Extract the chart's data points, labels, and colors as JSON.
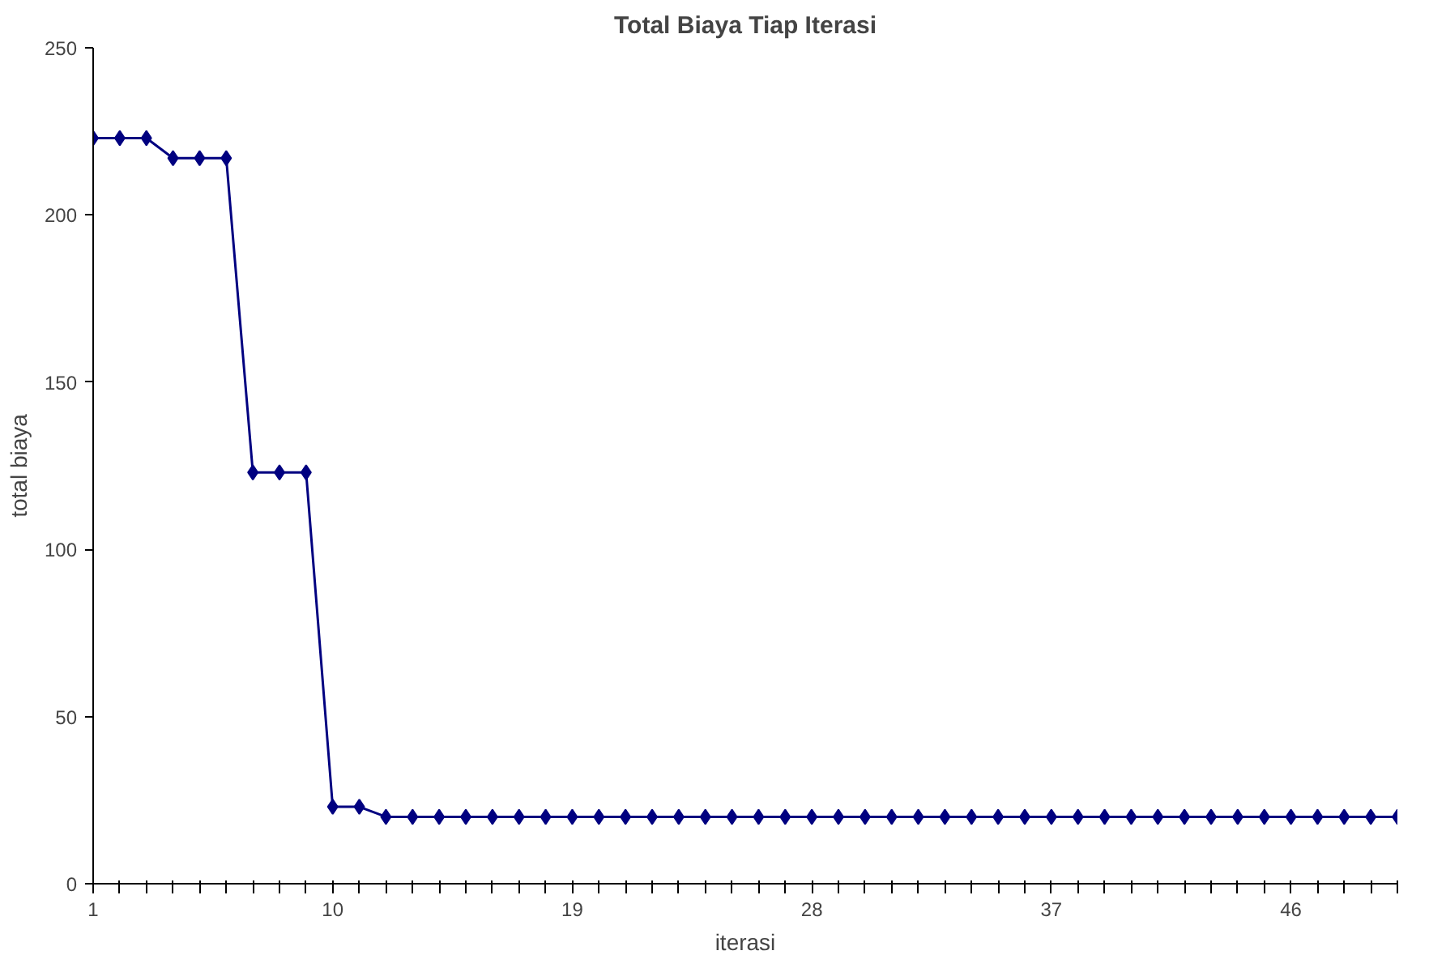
{
  "chart_data": {
    "type": "line",
    "title": "Total Biaya Tiap Iterasi",
    "xlabel": "iterasi",
    "ylabel": "total biaya",
    "x": [
      1,
      2,
      3,
      4,
      5,
      6,
      7,
      8,
      9,
      10,
      11,
      12,
      13,
      14,
      15,
      16,
      17,
      18,
      19,
      20,
      21,
      22,
      23,
      24,
      25,
      26,
      27,
      28,
      29,
      30,
      31,
      32,
      33,
      34,
      35,
      36,
      37,
      38,
      39,
      40,
      41,
      42,
      43,
      44,
      45,
      46,
      47,
      48,
      49,
      50
    ],
    "series": [
      {
        "color": "#000080",
        "values": [
          223,
          223,
          223,
          217,
          217,
          217,
          123,
          123,
          123,
          23,
          23,
          20,
          20,
          20,
          20,
          20,
          20,
          20,
          20,
          20,
          20,
          20,
          20,
          20,
          20,
          20,
          20,
          20,
          20,
          20,
          20,
          20,
          20,
          20,
          20,
          20,
          20,
          20,
          20,
          20,
          20,
          20,
          20,
          20,
          20,
          20,
          20,
          20,
          20,
          20
        ]
      }
    ],
    "xlim": [
      1,
      50
    ],
    "ylim": [
      0,
      250
    ],
    "yticks": [
      0,
      50,
      100,
      150,
      200,
      250
    ],
    "xticks": [
      1,
      {
        "value": 2,
        "label": null
      },
      {
        "value": 3,
        "label": null
      },
      {
        "value": 4,
        "label": null
      },
      {
        "value": 5,
        "label": null
      },
      {
        "value": 6,
        "label": null
      },
      {
        "value": 7,
        "label": null
      },
      {
        "value": 8,
        "label": null
      },
      {
        "value": 9,
        "label": null
      },
      10,
      {
        "value": 11,
        "label": null
      },
      {
        "value": 12,
        "label": null
      },
      {
        "value": 13,
        "label": null
      },
      {
        "value": 14,
        "label": null
      },
      {
        "value": 15,
        "label": null
      },
      {
        "value": 16,
        "label": null
      },
      {
        "value": 17,
        "label": null
      },
      {
        "value": 18,
        "label": null
      },
      19,
      {
        "value": 20,
        "label": null
      },
      {
        "value": 21,
        "label": null
      },
      {
        "value": 22,
        "label": null
      },
      {
        "value": 23,
        "label": null
      },
      {
        "value": 24,
        "label": null
      },
      {
        "value": 25,
        "label": null
      },
      {
        "value": 26,
        "label": null
      },
      {
        "value": 27,
        "label": null
      },
      28,
      {
        "value": 29,
        "label": null
      },
      {
        "value": 30,
        "label": null
      },
      {
        "value": 31,
        "label": null
      },
      {
        "value": 32,
        "label": null
      },
      {
        "value": 33,
        "label": null
      },
      {
        "value": 34,
        "label": null
      },
      {
        "value": 35,
        "label": null
      },
      {
        "value": 36,
        "label": null
      },
      37,
      {
        "value": 38,
        "label": null
      },
      {
        "value": 39,
        "label": null
      },
      {
        "value": 40,
        "label": null
      },
      {
        "value": 41,
        "label": null
      },
      {
        "value": 42,
        "label": null
      },
      {
        "value": 43,
        "label": null
      },
      {
        "value": 44,
        "label": null
      },
      {
        "value": 45,
        "label": null
      },
      46,
      {
        "value": 47,
        "label": null
      },
      {
        "value": 48,
        "label": null
      },
      {
        "value": 49,
        "label": null
      },
      {
        "value": 50,
        "label": null
      }
    ],
    "grid": false,
    "marker": "diamond",
    "line_style": "solid"
  }
}
